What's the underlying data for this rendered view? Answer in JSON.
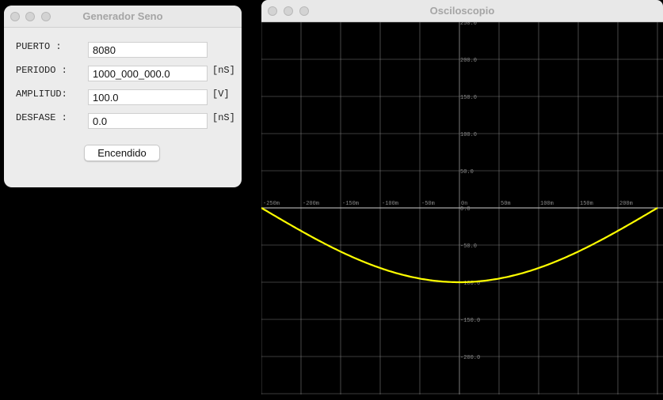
{
  "generator": {
    "title": "Generador Seno",
    "fields": [
      {
        "label": "PUERTO   :",
        "value": "8080",
        "unit": ""
      },
      {
        "label": "PERIODO  :",
        "value": "1000_000_000.0",
        "unit": "[nS]"
      },
      {
        "label": "AMPLITUD:",
        "value": "100.0",
        "unit": "[V]"
      },
      {
        "label": "DESFASE  :",
        "value": "0.0",
        "unit": "[nS]"
      }
    ],
    "button_label": "Encendido"
  },
  "oscilloscope": {
    "title": "Osciloscopio",
    "trace_color": "#ffff00",
    "grid_color": "#7a7a7a",
    "chart_data": {
      "type": "line",
      "title": "",
      "xlabel": "",
      "ylabel": "",
      "x_ticks": [
        "-250m",
        "-200m",
        "-150m",
        "-100m",
        "-50m",
        "0n",
        "50m",
        "100m",
        "150m",
        "200m"
      ],
      "y_ticks": [
        "250.0",
        "200.0",
        "150.0",
        "100.0",
        "50.0",
        "0.0",
        "-50.0",
        "-100.0",
        "-150.0",
        "-200.0"
      ],
      "xlim": [
        -250,
        250
      ],
      "ylim": [
        -250,
        250
      ],
      "grid": true,
      "series": [
        {
          "x": [
            -250,
            -200,
            -150,
            -100,
            -50,
            0,
            50,
            100,
            150,
            200,
            250
          ],
          "y": [
            0,
            -19.1,
            -46.3,
            -71.5,
            -91.0,
            -100.0,
            -95.1,
            -80.9,
            -58.8,
            -30.9,
            5.0
          ]
        }
      ]
    }
  }
}
